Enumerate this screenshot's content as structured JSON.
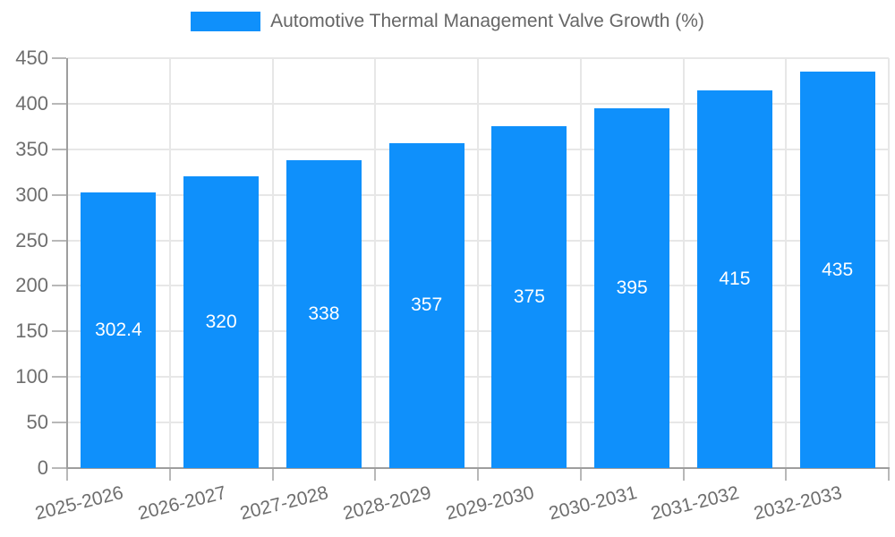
{
  "legend": {
    "position": "top"
  },
  "chart_data": {
    "type": "bar",
    "title": "Automotive Thermal Management Valve Growth (%)",
    "categories": [
      "2025-2026",
      "2026-2027",
      "2027-2028",
      "2028-2029",
      "2029-2030",
      "2030-2031",
      "2031-2032",
      "2032-2033"
    ],
    "values": [
      302.4,
      320,
      338,
      357,
      375,
      395,
      415,
      435
    ],
    "value_labels": [
      "302.4",
      "320",
      "338",
      "357",
      "375",
      "395",
      "415",
      "435"
    ],
    "xlabel": "",
    "ylabel": "",
    "ylim": [
      0,
      450
    ],
    "ytick_step": 50,
    "yticks": [
      0,
      50,
      100,
      150,
      200,
      250,
      300,
      350,
      400,
      450
    ],
    "grid": true,
    "legend_position": "top",
    "colors": {
      "bar": "#0f90fb",
      "grid": "#e7e7e7",
      "axis": "#9e9e9e",
      "tick": "#b8b8b8",
      "tick_label": "#6e6e6e",
      "value_label": "#ffffff",
      "legend_text": "#666666"
    }
  }
}
